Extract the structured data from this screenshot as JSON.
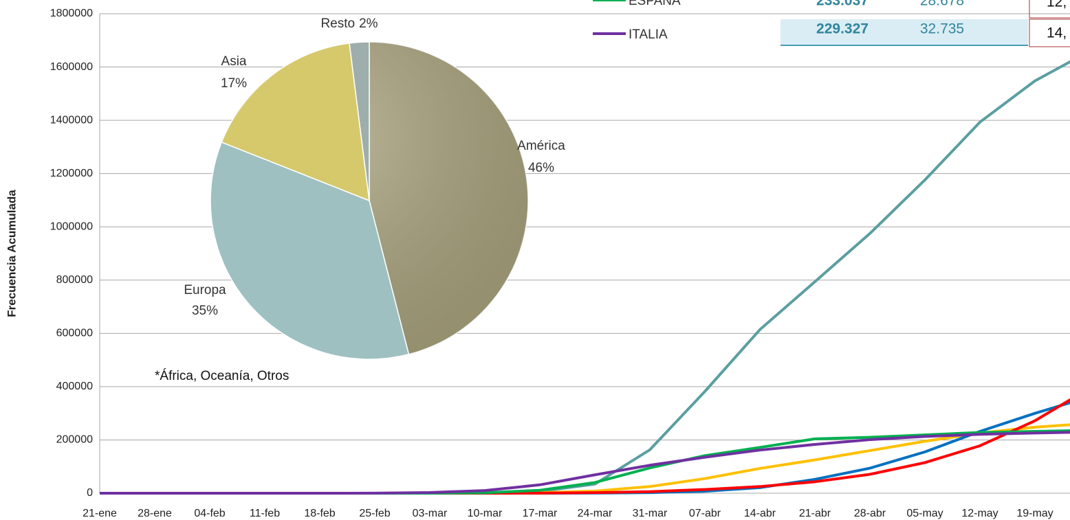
{
  "chart_data": [
    {
      "type": "line",
      "y_label": "Frecuencia Acumulada",
      "categories": [
        "21-ene",
        "28-ene",
        "04-feb",
        "11-feb",
        "18-feb",
        "25-feb",
        "03-mar",
        "10-mar",
        "17-mar",
        "24-mar",
        "31-mar",
        "07-abr",
        "14-abr",
        "21-abr",
        "28-abr",
        "05-may",
        "12-may",
        "19-may",
        null
      ],
      "ylim": [
        0,
        1800000
      ],
      "yticks": [
        0,
        200000,
        400000,
        600000,
        800000,
        1000000,
        1200000,
        1400000,
        1600000,
        1800000
      ],
      "grid": true,
      "series": [
        {
          "color": "#5b9ea0",
          "values": [
            0,
            0,
            0,
            0,
            0,
            0,
            100,
            1000,
            7000,
            34000,
            163000,
            382000,
            614000,
            794000,
            975000,
            1176000,
            1393000,
            1548000,
            1660000
          ]
        },
        {
          "color": "#ffc000",
          "values": [
            0,
            0,
            0,
            0,
            0,
            0,
            0,
            300,
            2000,
            8000,
            25000,
            55000,
            93000,
            125000,
            160000,
            195000,
            226000,
            248000,
            262000
          ]
        },
        {
          "color": "#0070c0",
          "values": [
            0,
            0,
            0,
            0,
            0,
            0,
            0,
            0,
            100,
            500,
            2300,
            7500,
            21000,
            52000,
            94000,
            155000,
            232000,
            300000,
            362000
          ]
        },
        {
          "color": "#ff0000",
          "values": [
            0,
            0,
            0,
            0,
            0,
            0,
            0,
            0,
            300,
            2200,
            5700,
            14000,
            25000,
            43000,
            71000,
            115000,
            178000,
            272000,
            395000
          ]
        },
        {
          "name": "ESPAÑA",
          "color": "#00b050",
          "values": [
            0,
            0,
            0,
            0,
            0,
            0,
            100,
            1700,
            11000,
            40000,
            95000,
            141000,
            172000,
            204000,
            210000,
            219000,
            228000,
            232000,
            236000
          ]
        },
        {
          "name": "ITALIA",
          "color": "#7030a0",
          "values": [
            0,
            0,
            0,
            0,
            0,
            200,
            2500,
            10000,
            31500,
            69000,
            105000,
            135000,
            162000,
            183000,
            201000,
            213000,
            221000,
            226000,
            230000
          ]
        }
      ]
    },
    {
      "type": "pie",
      "categories": [
        "América",
        "Europa",
        "Asia",
        "Resto"
      ],
      "values": [
        46,
        35,
        17,
        2
      ],
      "value_labels": [
        "46%",
        "35%",
        "17%",
        "2%"
      ],
      "colors": [
        "#a8a27c",
        "#9ec0c1",
        "#d6c96c",
        "#9eaeac"
      ],
      "annotation": "*África, Oceanía, Otros"
    }
  ],
  "table": {
    "rows": [
      [
        "233.037",
        "28.678",
        "12,"
      ],
      [
        "229.327",
        "32.735",
        "14,"
      ]
    ]
  }
}
